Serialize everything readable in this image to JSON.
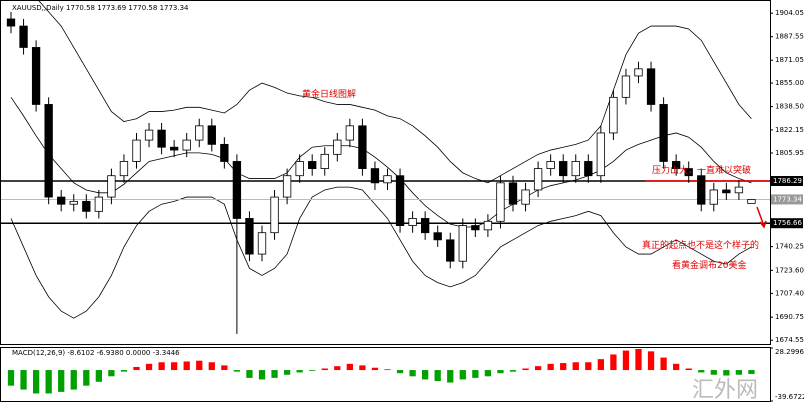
{
  "chart_data": {
    "type": "candlestick",
    "header": "XAUUSD,,Daily  1770.58 1773.69 1770.58 1773.34",
    "title": "黄金日线图解",
    "annotations": [
      "压力山大，一直难以突破",
      "真正的起点也不是这个样子的",
      "看黄金调布20美金"
    ],
    "watermark": "汇外网",
    "ylim": [
      1671.9,
      1912.6
    ],
    "yticks": [
      1904.05,
      1887.55,
      1871.05,
      {
        "value": 1855.0,
        "label": "1855.00"
      },
      {
        "value": 1838.5,
        "label": "1838.50"
      },
      1822.15,
      1805.95,
      1740.25,
      {
        "value": 1723.6,
        "label": "1723.60"
      },
      {
        "value": 1707.4,
        "label": "1707.40"
      },
      1690.75,
      1674.55
    ],
    "hlines": [
      {
        "value": 1786.29,
        "color": "#000000"
      },
      {
        "value": 1773.34,
        "color": "#bbbbbb"
      },
      {
        "value": 1756.66,
        "color": "#000000"
      }
    ],
    "pressure_line": {
      "value": 1786.29,
      "color": "#ff0000"
    },
    "open": [
      1900,
      1895,
      1880,
      1840,
      1775,
      1770,
      1772,
      1765,
      1775,
      1790,
      1800,
      1815,
      1822,
      1810,
      1808,
      1815,
      1825,
      1812,
      1800,
      1760,
      1735,
      1750,
      1775,
      1790,
      1800,
      1795,
      1805,
      1815,
      1825,
      1795,
      1785,
      1790,
      1755,
      1760,
      1750,
      1745,
      1730,
      1755,
      1752,
      1758,
      1785,
      1770,
      1780,
      1795,
      1800,
      1790,
      1800,
      1790,
      1820,
      1845,
      1860,
      1865,
      1840,
      1800,
      1795,
      1790,
      1770,
      1780,
      1778,
      1770.58
    ],
    "high": [
      1905,
      1900,
      1885,
      1845,
      1780,
      1777,
      1777,
      1780,
      1795,
      1805,
      1820,
      1827,
      1827,
      1815,
      1820,
      1830,
      1830,
      1817,
      1805,
      1765,
      1755,
      1780,
      1795,
      1805,
      1805,
      1810,
      1820,
      1830,
      1830,
      1800,
      1795,
      1795,
      1765,
      1765,
      1755,
      1750,
      1760,
      1760,
      1763,
      1790,
      1790,
      1785,
      1800,
      1805,
      1805,
      1805,
      1805,
      1825,
      1850,
      1865,
      1870,
      1870,
      1845,
      1805,
      1800,
      1795,
      1785,
      1785,
      1787,
      1773.69
    ],
    "low": [
      1890,
      1875,
      1835,
      1770,
      1765,
      1765,
      1760,
      1760,
      1770,
      1785,
      1795,
      1810,
      1805,
      1803,
      1803,
      1810,
      1807,
      1795,
      1679,
      1730,
      1730,
      1745,
      1770,
      1785,
      1790,
      1790,
      1800,
      1810,
      1790,
      1780,
      1780,
      1750,
      1750,
      1745,
      1740,
      1725,
      1725,
      1747,
      1747,
      1753,
      1765,
      1765,
      1775,
      1790,
      1785,
      1785,
      1785,
      1785,
      1815,
      1840,
      1855,
      1835,
      1795,
      1790,
      1785,
      1765,
      1765,
      1773,
      1773,
      1770.58
    ],
    "close": [
      1895,
      1880,
      1840,
      1775,
      1770,
      1772,
      1765,
      1775,
      1790,
      1800,
      1815,
      1822,
      1810,
      1808,
      1815,
      1825,
      1812,
      1800,
      1760,
      1735,
      1750,
      1775,
      1790,
      1800,
      1795,
      1805,
      1815,
      1825,
      1795,
      1785,
      1790,
      1755,
      1760,
      1750,
      1745,
      1730,
      1755,
      1752,
      1758,
      1785,
      1770,
      1780,
      1795,
      1800,
      1790,
      1800,
      1790,
      1820,
      1845,
      1860,
      1865,
      1840,
      1800,
      1795,
      1790,
      1770,
      1780,
      1778,
      1782,
      1773.34
    ],
    "bands": [
      {
        "color": "#000000",
        "values": [
          1930,
          1925,
          1915,
          1905,
          1895,
          1880,
          1865,
          1850,
          1835,
          1828,
          1830,
          1835,
          1835,
          1836,
          1838,
          1838,
          1836,
          1834,
          1840,
          1850,
          1855,
          1852,
          1848,
          1846,
          1845,
          1842,
          1840,
          1840,
          1838,
          1836,
          1832,
          1830,
          1825,
          1818,
          1810,
          1800,
          1792,
          1788,
          1785,
          1790,
          1795,
          1800,
          1805,
          1808,
          1810,
          1812,
          1815,
          1825,
          1850,
          1875,
          1890,
          1895,
          1895,
          1895,
          1893,
          1885,
          1870,
          1855,
          1840,
          1830
        ]
      },
      {
        "color": "#000000",
        "values": [
          1845,
          1832,
          1818,
          1805,
          1795,
          1785,
          1780,
          1778,
          1778,
          1784,
          1792,
          1800,
          1802,
          1804,
          1806,
          1806,
          1805,
          1802,
          1792,
          1788,
          1788,
          1788,
          1792,
          1803,
          1810,
          1811,
          1811,
          1811,
          1809,
          1803,
          1796,
          1788,
          1778,
          1769,
          1762,
          1756,
          1754,
          1754,
          1758,
          1765,
          1770,
          1775,
          1780,
          1783,
          1785,
          1787,
          1790,
          1794,
          1800,
          1808,
          1812,
          1815,
          1818,
          1820,
          1817,
          1810,
          1800,
          1792,
          1788,
          1785
        ]
      },
      {
        "color": "#000000",
        "values": [
          1760,
          1740,
          1720,
          1705,
          1695,
          1690,
          1695,
          1705,
          1720,
          1740,
          1755,
          1765,
          1770,
          1772,
          1775,
          1775,
          1775,
          1770,
          1745,
          1725,
          1720,
          1725,
          1735,
          1760,
          1775,
          1780,
          1782,
          1782,
          1780,
          1770,
          1760,
          1745,
          1730,
          1720,
          1715,
          1712,
          1715,
          1720,
          1730,
          1740,
          1745,
          1750,
          1755,
          1758,
          1760,
          1762,
          1765,
          1762,
          1750,
          1740,
          1735,
          1735,
          1740,
          1745,
          1740,
          1735,
          1730,
          1728,
          1735,
          1740
        ]
      }
    ],
    "macd": {
      "label": "MACD(12,26,9) -8.6102 -6.9380 0.0000 -3.3446",
      "ylim": [
        -39.6722,
        28.2996
      ],
      "yticks": [
        28.2996,
        -39.6722
      ],
      "up_color": "#ff0000",
      "down_color": "#00a000",
      "values": [
        -20,
        -25,
        -30,
        -30,
        -28,
        -25,
        -20,
        -15,
        -8,
        -2,
        4,
        8,
        10,
        10,
        11,
        12,
        10,
        6,
        -2,
        -10,
        -12,
        -10,
        -6,
        -3,
        -1,
        2,
        5,
        8,
        6,
        3,
        1,
        -4,
        -8,
        -12,
        -14,
        -16,
        -12,
        -10,
        -8,
        -4,
        -2,
        2,
        5,
        8,
        9,
        10,
        10,
        14,
        20,
        25,
        27,
        24,
        16,
        8,
        2,
        -3,
        -6,
        -7,
        -6,
        -5
      ]
    }
  }
}
